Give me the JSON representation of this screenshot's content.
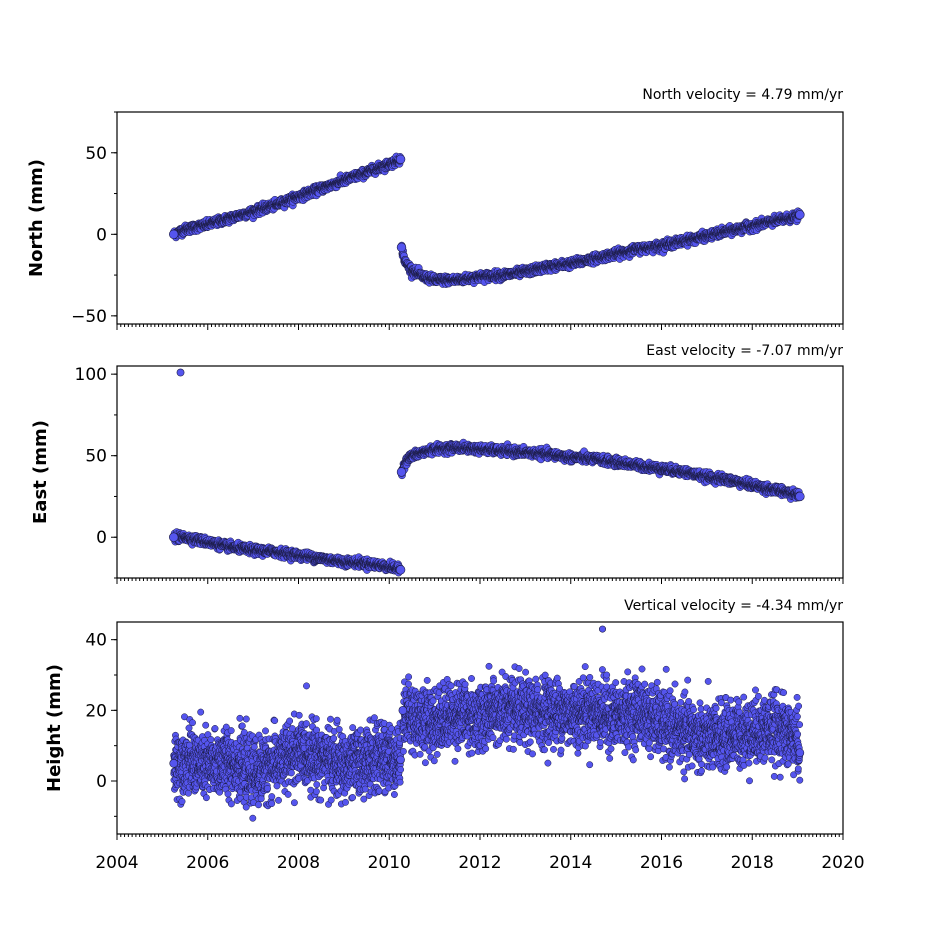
{
  "chart_data": [
    {
      "type": "scatter",
      "title": "North velocity = 4.79 mm/yr",
      "xlabel": "",
      "ylabel": "North (mm)",
      "xlim": [
        2004,
        2020
      ],
      "ylim": [
        -55,
        75
      ],
      "yticks": [
        -50,
        0,
        50
      ],
      "ytick_labels": [
        "−50",
        "0",
        "50"
      ],
      "color": "#5555ee",
      "edge_color": "#1a1a40",
      "series": [
        {
          "x": [
            2005.25,
            2005.5,
            2006.0,
            2006.5,
            2007.0,
            2007.5,
            2008.0,
            2008.5,
            2009.0,
            2009.5,
            2010.0,
            2010.25,
            2010.27,
            2010.35,
            2010.5,
            2010.75,
            2011.0,
            2011.5,
            2012.0,
            2012.5,
            2013.0,
            2013.5,
            2014.0,
            2014.5,
            2015.0,
            2015.5,
            2016.0,
            2016.5,
            2017.0,
            2017.5,
            2018.0,
            2018.5,
            2019.0,
            2019.05
          ],
          "y": [
            0,
            3,
            6,
            10,
            14,
            18,
            23,
            28,
            33,
            38,
            43,
            46,
            -8,
            -17,
            -22,
            -26,
            -28,
            -28,
            -26,
            -25,
            -23,
            -20,
            -18,
            -15,
            -12,
            -9,
            -7,
            -4,
            -1,
            2,
            5,
            8,
            11,
            12
          ]
        }
      ]
    },
    {
      "type": "scatter",
      "title": "East velocity = -7.07 mm/yr",
      "xlabel": "",
      "ylabel": "East (mm)",
      "xlim": [
        2004,
        2020
      ],
      "ylim": [
        -25,
        105
      ],
      "yticks": [
        0,
        50,
        100
      ],
      "ytick_labels": [
        "0",
        "50",
        "100"
      ],
      "color": "#5555ee",
      "edge_color": "#1a1a40",
      "series": [
        {
          "x": [
            2005.25,
            2005.4,
            2005.5,
            2006.0,
            2006.5,
            2007.0,
            2007.5,
            2008.0,
            2008.5,
            2009.0,
            2009.5,
            2010.0,
            2010.25,
            2010.27,
            2010.35,
            2010.5,
            2010.75,
            2011.0,
            2011.5,
            2012.0,
            2012.5,
            2013.0,
            2013.5,
            2014.0,
            2014.5,
            2015.0,
            2015.5,
            2016.0,
            2016.5,
            2017.0,
            2017.5,
            2018.0,
            2018.5,
            2019.0,
            2019.05
          ],
          "y": [
            0,
            101,
            0,
            -3,
            -6,
            -8,
            -9,
            -11,
            -13,
            -15,
            -16,
            -18,
            -20,
            40,
            46,
            50,
            52,
            54,
            55,
            54,
            53,
            52,
            51,
            49,
            48,
            46,
            44,
            42,
            40,
            37,
            35,
            32,
            29,
            26,
            25
          ]
        }
      ]
    },
    {
      "type": "scatter",
      "title": "Vertical velocity = -4.34 mm/yr",
      "xlabel": "",
      "ylabel": "Height (mm)",
      "xlim": [
        2004,
        2020
      ],
      "ylim": [
        -15,
        45
      ],
      "yticks": [
        0,
        20,
        40
      ],
      "ytick_labels": [
        "0",
        "20",
        "40"
      ],
      "xticks": [
        2004,
        2006,
        2008,
        2010,
        2012,
        2014,
        2016,
        2018,
        2020
      ],
      "xtick_labels": [
        "2004",
        "2006",
        "2008",
        "2010",
        "2012",
        "2014",
        "2016",
        "2018",
        "2020"
      ],
      "color": "#5555ee",
      "edge_color": "#1a1a40",
      "series": [
        {
          "x": [
            2005.25,
            2005.5,
            2006.0,
            2006.5,
            2007.0,
            2007.5,
            2008.0,
            2008.5,
            2009.0,
            2009.5,
            2010.0,
            2010.25,
            2010.3,
            2010.5,
            2011.0,
            2011.5,
            2012.0,
            2012.5,
            2013.0,
            2013.5,
            2014.0,
            2014.5,
            2014.7,
            2015.0,
            2015.5,
            2016.0,
            2016.5,
            2017.0,
            2017.5,
            2018.0,
            2018.5,
            2019.0,
            2019.05
          ],
          "y": [
            5,
            6,
            4,
            6,
            2,
            5,
            8,
            7,
            4,
            6,
            7,
            6,
            20,
            18,
            17,
            19,
            18,
            20,
            19,
            20,
            19,
            20,
            43,
            18,
            20,
            16,
            14,
            12,
            13,
            14,
            15,
            12,
            8
          ]
        }
      ]
    }
  ]
}
